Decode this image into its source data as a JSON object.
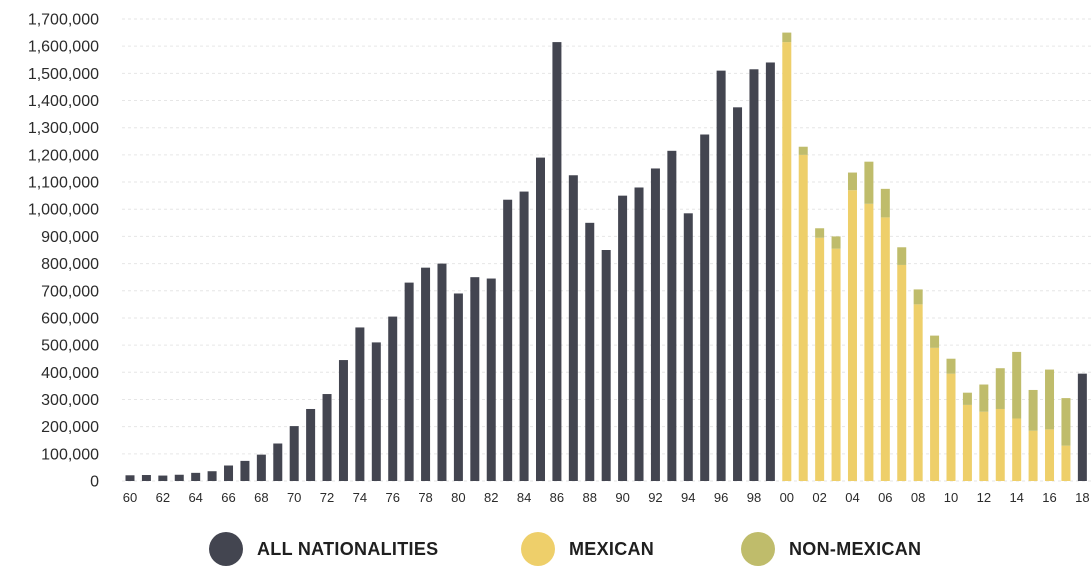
{
  "chart_data": {
    "type": "bar",
    "stacked": true,
    "ylim": [
      0,
      1700000
    ],
    "y_ticks": [
      "1,700,000",
      "1,600,000",
      "1,500,000",
      "1,400,000",
      "1,300,000",
      "1,200,000",
      "1,100,000",
      "1,000,000",
      "900,000",
      "800,000",
      "700,000",
      "600,000",
      "500,000",
      "400,000",
      "300,000",
      "200,000",
      "100,000",
      "0"
    ],
    "grid": true,
    "legend_position": "bottom",
    "categories": [
      "60",
      "61",
      "62",
      "63",
      "64",
      "65",
      "66",
      "67",
      "68",
      "69",
      "70",
      "71",
      "72",
      "73",
      "74",
      "75",
      "76",
      "77",
      "78",
      "79",
      "80",
      "81",
      "82",
      "83",
      "84",
      "85",
      "86",
      "87",
      "88",
      "89",
      "90",
      "91",
      "92",
      "93",
      "94",
      "95",
      "96",
      "97",
      "98",
      "99",
      "00",
      "01",
      "02",
      "03",
      "04",
      "05",
      "06",
      "07",
      "08",
      "09",
      "10",
      "11",
      "12",
      "13",
      "14",
      "15",
      "16",
      "17",
      "18"
    ],
    "x_tick_labels": [
      "60",
      "",
      "62",
      "",
      "64",
      "",
      "66",
      "",
      "68",
      "",
      "70",
      "",
      "72",
      "",
      "74",
      "",
      "76",
      "",
      "78",
      "",
      "80",
      "",
      "82",
      "",
      "84",
      "",
      "86",
      "",
      "88",
      "",
      "90",
      "",
      "92",
      "",
      "94",
      "",
      "96",
      "",
      "98",
      "",
      "00",
      "",
      "02",
      "",
      "04",
      "",
      "06",
      "",
      "08",
      "",
      "10",
      "",
      "12",
      "",
      "14",
      "",
      "16",
      "",
      "18"
    ],
    "series": [
      {
        "name": "ALL NATIONALITIES",
        "color": "#434550",
        "values": [
          21000,
          22000,
          20000,
          23000,
          30000,
          36000,
          57000,
          74000,
          97000,
          138000,
          202000,
          265000,
          320000,
          445000,
          565000,
          510000,
          605000,
          730000,
          785000,
          800000,
          690000,
          750000,
          745000,
          1035000,
          1065000,
          1190000,
          1615000,
          1125000,
          950000,
          850000,
          1050000,
          1080000,
          1150000,
          1215000,
          985000,
          1275000,
          1510000,
          1375000,
          1515000,
          1540000,
          null,
          null,
          null,
          null,
          null,
          null,
          null,
          null,
          null,
          null,
          null,
          null,
          null,
          null,
          null,
          null,
          null,
          null,
          395000
        ]
      },
      {
        "name": "MEXICAN",
        "color": "#eecf6a",
        "values": [
          null,
          null,
          null,
          null,
          null,
          null,
          null,
          null,
          null,
          null,
          null,
          null,
          null,
          null,
          null,
          null,
          null,
          null,
          null,
          null,
          null,
          null,
          null,
          null,
          null,
          null,
          null,
          null,
          null,
          null,
          null,
          null,
          null,
          null,
          null,
          null,
          null,
          null,
          null,
          null,
          1615000,
          1200000,
          895000,
          855000,
          1070000,
          1020000,
          970000,
          795000,
          650000,
          490000,
          395000,
          280000,
          255000,
          265000,
          230000,
          185000,
          190000,
          130000,
          null
        ]
      },
      {
        "name": "NON-MEXICAN",
        "color": "#bfbc6b",
        "values": [
          null,
          null,
          null,
          null,
          null,
          null,
          null,
          null,
          null,
          null,
          null,
          null,
          null,
          null,
          null,
          null,
          null,
          null,
          null,
          null,
          null,
          null,
          null,
          null,
          null,
          null,
          null,
          null,
          null,
          null,
          null,
          null,
          null,
          null,
          null,
          null,
          null,
          null,
          null,
          null,
          35000,
          30000,
          35000,
          45000,
          65000,
          155000,
          105000,
          65000,
          55000,
          45000,
          55000,
          45000,
          100000,
          150000,
          245000,
          150000,
          220000,
          175000,
          null
        ]
      }
    ]
  }
}
